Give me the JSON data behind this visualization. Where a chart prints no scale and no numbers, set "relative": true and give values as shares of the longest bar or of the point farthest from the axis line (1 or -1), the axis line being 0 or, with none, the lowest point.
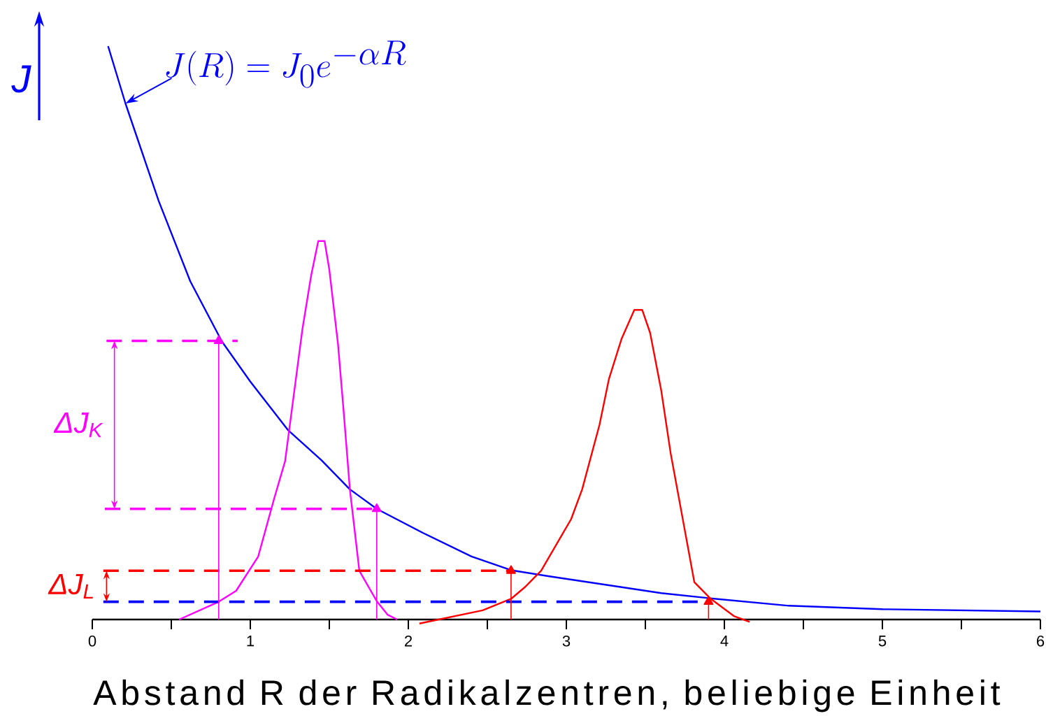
{
  "chart_data": {
    "type": "line",
    "relative": true,
    "xlabel": "Abstand R der Radikalzentren, beliebige Einheit",
    "ylabel": "J",
    "xlim": [
      0,
      6
    ],
    "xticks": [
      0,
      {
        "value": 0.5,
        "label": null
      },
      1,
      {
        "value": 1.5,
        "label": null
      },
      2,
      {
        "value": 2.5,
        "label": null
      },
      3,
      {
        "value": 3.5,
        "label": null
      },
      4,
      {
        "value": 4.5,
        "label": null
      },
      5,
      {
        "value": 5.5,
        "label": null
      },
      6
    ],
    "annotations": [
      {
        "text": "ΔJ$_{K}$",
        "x": 0.14,
        "y": 0.486
      },
      {
        "text": "ΔJ$_{L}$",
        "x": 0.09,
        "y": 0.085
      }
    ],
    "series": [
      {
        "name": "J(R)=J_0e^{-\\alpha R}",
        "color": "#0000ff",
        "x": [
          0.1,
          0.21,
          0.42,
          0.62,
          0.82,
          1.0,
          1.24,
          1.45,
          1.63,
          1.8,
          2.1,
          2.4,
          2.65,
          2.9,
          3.24,
          3.6,
          3.91,
          4.41,
          5.0,
          5.5,
          6.0
        ],
        "values": [
          1.0,
          0.9,
          0.73,
          0.59,
          0.485,
          0.415,
          0.33,
          0.278,
          0.227,
          0.193,
          0.15,
          0.11,
          0.086,
          0.075,
          0.061,
          0.046,
          0.037,
          0.024,
          0.018,
          0.016,
          0.014
        ]
      },
      {
        "color": "#ff00ff",
        "x": [
          0.55,
          0.8,
          0.91,
          1.05,
          1.15,
          1.22,
          1.33,
          1.385,
          1.43,
          1.47,
          1.5,
          1.555,
          1.59,
          1.63,
          1.69,
          1.8,
          1.87,
          1.93
        ],
        "values": [
          0.0,
          0.031,
          0.05,
          0.11,
          0.21,
          0.276,
          0.507,
          0.6,
          0.66,
          0.66,
          0.61,
          0.48,
          0.365,
          0.227,
          0.085,
          0.032,
          0.008,
          0.0
        ]
      },
      {
        "color": "#ff0000",
        "x": [
          2.07,
          2.47,
          2.65,
          2.74,
          2.84,
          3.03,
          3.1,
          3.21,
          3.27,
          3.35,
          3.43,
          3.48,
          3.53,
          3.6,
          3.66,
          3.75,
          3.81,
          3.91,
          4.06,
          4.16
        ],
        "values": [
          -0.007,
          0.016,
          0.036,
          0.057,
          0.085,
          0.175,
          0.227,
          0.34,
          0.42,
          0.49,
          0.54,
          0.54,
          0.5,
          0.4,
          0.29,
          0.155,
          0.065,
          0.037,
          0.006,
          -0.004
        ]
      },
      {
        "color": "#ff00ff",
        "line_style": "dashed",
        "x": [
          0.09,
          0.92
        ],
        "values": [
          0.486,
          0.486
        ]
      },
      {
        "color": "#ff00ff",
        "line_style": "dashed",
        "x": [
          0.08,
          1.8
        ],
        "values": [
          0.193,
          0.193
        ]
      },
      {
        "color": "#ff0000",
        "line_style": "dashed",
        "x": [
          0.07,
          2.65
        ],
        "values": [
          0.085,
          0.085
        ]
      },
      {
        "color": "#0000ff",
        "line_style": "dashed",
        "x": [
          0.07,
          3.9
        ],
        "values": [
          0.031,
          0.031
        ]
      },
      {
        "type": "lollipop",
        "marker": "triangle",
        "color": "#ff00ff",
        "x": [
          0.8,
          1.8
        ],
        "values": [
          0.486,
          0.193
        ]
      },
      {
        "type": "lollipop",
        "marker": "triangle",
        "color": "#ff0000",
        "x": [
          2.65,
          3.9
        ],
        "values": [
          0.085,
          0.031
        ]
      }
    ]
  }
}
